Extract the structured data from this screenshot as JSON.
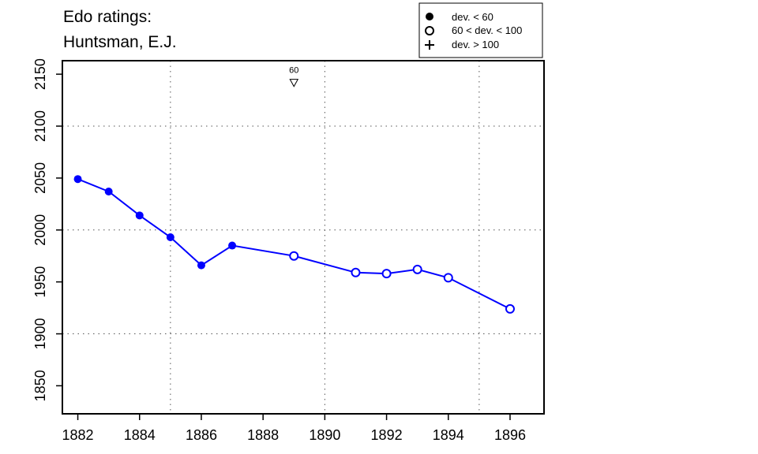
{
  "chart_data": {
    "type": "line",
    "title_lines": [
      "Edo ratings:",
      "Huntsman, E.J."
    ],
    "xlabel": "",
    "ylabel": "",
    "xlim": [
      1881.5,
      1897.1
    ],
    "ylim": [
      1823,
      2163
    ],
    "x_ticks": [
      1882,
      1884,
      1886,
      1888,
      1890,
      1892,
      1894,
      1896
    ],
    "y_ticks": [
      1850,
      1900,
      1950,
      2000,
      2050,
      2100,
      2150
    ],
    "x_grid": [
      1885,
      1890,
      1895
    ],
    "y_grid": [
      1900,
      2000,
      2100
    ],
    "grid": "dotted",
    "line_color": "#0000ff",
    "series": [
      {
        "points": [
          {
            "x": 1882,
            "y": 2049,
            "marker": "filled"
          },
          {
            "x": 1883,
            "y": 2037,
            "marker": "filled"
          },
          {
            "x": 1884,
            "y": 2014,
            "marker": "filled"
          },
          {
            "x": 1885,
            "y": 1993,
            "marker": "filled"
          },
          {
            "x": 1886,
            "y": 1966,
            "marker": "filled"
          },
          {
            "x": 1887,
            "y": 1985,
            "marker": "filled"
          },
          {
            "x": 1889,
            "y": 1975,
            "marker": "open"
          },
          {
            "x": 1891,
            "y": 1959,
            "marker": "open"
          },
          {
            "x": 1892,
            "y": 1958,
            "marker": "open"
          },
          {
            "x": 1893,
            "y": 1962,
            "marker": "open"
          },
          {
            "x": 1894,
            "y": 1954,
            "marker": "open"
          },
          {
            "x": 1896,
            "y": 1924,
            "marker": "open"
          }
        ]
      }
    ],
    "annotations": [
      {
        "x": 1889,
        "y": 2142,
        "label": "60",
        "symbol": "▽"
      }
    ],
    "legend": {
      "placement": "top-right",
      "entries": [
        {
          "symbol": "●",
          "label": "dev. < 60"
        },
        {
          "symbol": "○",
          "label": "60 < dev. < 100"
        },
        {
          "symbol": "+",
          "label": "dev. > 100"
        }
      ]
    }
  }
}
